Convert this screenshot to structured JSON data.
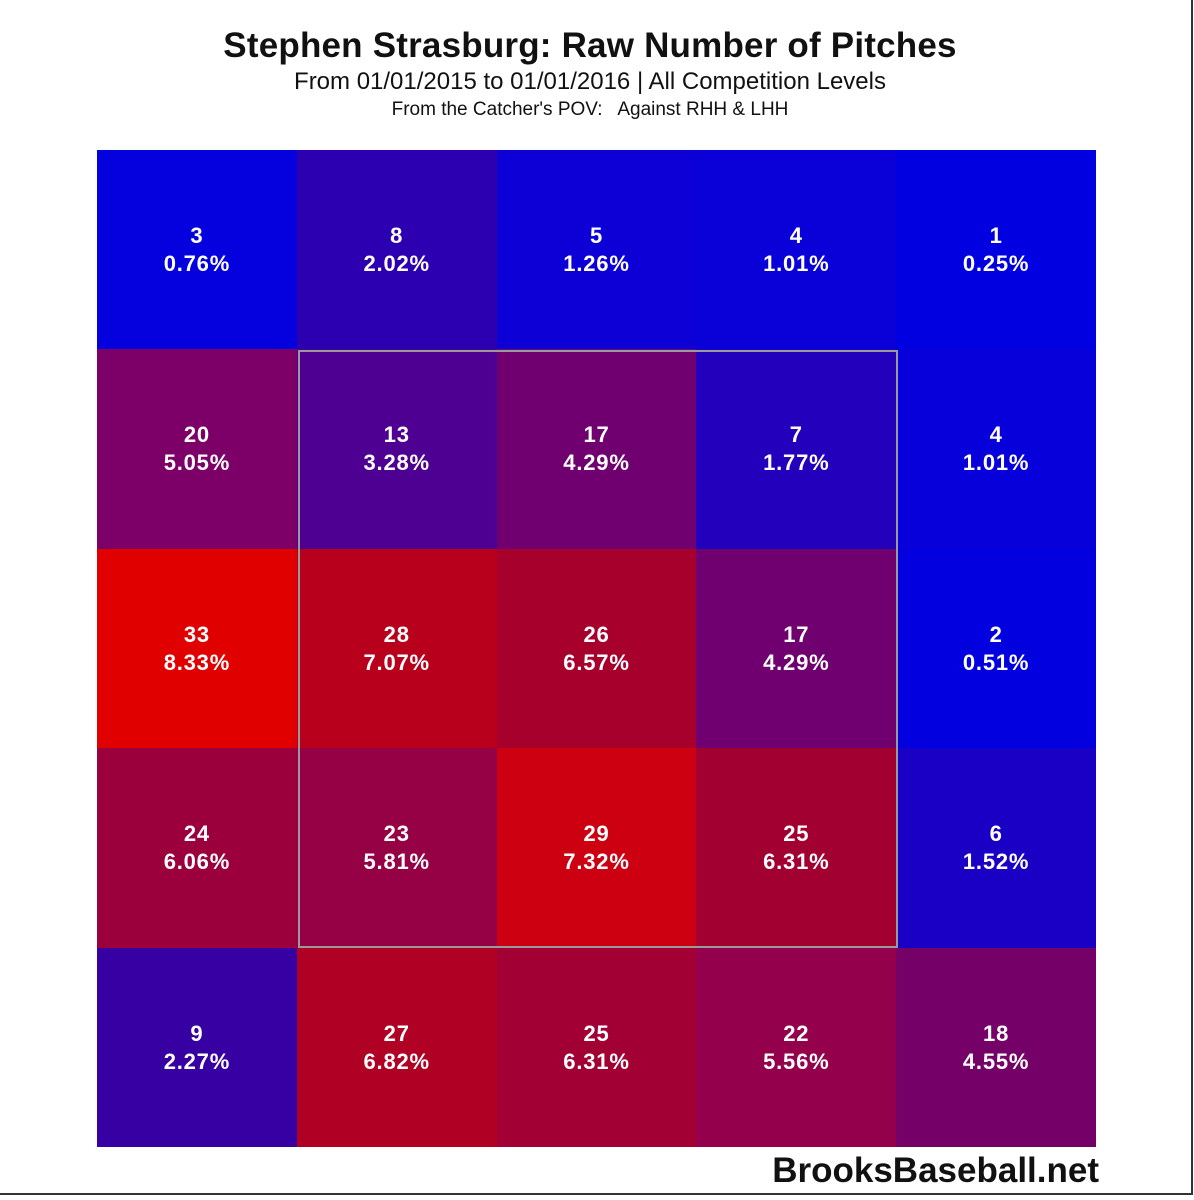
{
  "title": "Stephen Strasburg: Raw Number of Pitches",
  "subtitle": "From 01/01/2015 to 01/01/2016 | All Competition Levels",
  "subtitle2": "From the Catcher's POV:   Against RHH & LHH",
  "credit": "BrooksBaseball.net",
  "colors": {
    "low": "#0000e0",
    "high": "#e00000",
    "strike_zone_border": "#9a9a9a"
  },
  "cells": [
    {
      "count": "3",
      "pct": "0.76%",
      "color": "#0500de"
    },
    {
      "count": "8",
      "pct": "2.02%",
      "color": "#2c00b0"
    },
    {
      "count": "5",
      "pct": "1.26%",
      "color": "#0c00d6"
    },
    {
      "count": "4",
      "pct": "1.01%",
      "color": "#0a00d8"
    },
    {
      "count": "1",
      "pct": "0.25%",
      "color": "#0000e0"
    },
    {
      "count": "20",
      "pct": "5.05%",
      "color": "#7c0068"
    },
    {
      "count": "13",
      "pct": "3.28%",
      "color": "#4e0092"
    },
    {
      "count": "17",
      "pct": "4.29%",
      "color": "#700070"
    },
    {
      "count": "7",
      "pct": "1.77%",
      "color": "#2200bc"
    },
    {
      "count": "4",
      "pct": "1.01%",
      "color": "#0800da"
    },
    {
      "count": "33",
      "pct": "8.33%",
      "color": "#e00000"
    },
    {
      "count": "28",
      "pct": "7.07%",
      "color": "#b8001c"
    },
    {
      "count": "26",
      "pct": "6.57%",
      "color": "#a8002c"
    },
    {
      "count": "17",
      "pct": "4.29%",
      "color": "#700070"
    },
    {
      "count": "2",
      "pct": "0.51%",
      "color": "#0200de"
    },
    {
      "count": "24",
      "pct": "6.06%",
      "color": "#9c003c"
    },
    {
      "count": "23",
      "pct": "5.81%",
      "color": "#960044"
    },
    {
      "count": "29",
      "pct": "7.32%",
      "color": "#cc0010"
    },
    {
      "count": "25",
      "pct": "6.31%",
      "color": "#a20030"
    },
    {
      "count": "6",
      "pct": "1.52%",
      "color": "#1a00c4"
    },
    {
      "count": "9",
      "pct": "2.27%",
      "color": "#3600a2"
    },
    {
      "count": "27",
      "pct": "6.82%",
      "color": "#b00024"
    },
    {
      "count": "25",
      "pct": "6.31%",
      "color": "#a20034"
    },
    {
      "count": "22",
      "pct": "5.56%",
      "color": "#94004c"
    },
    {
      "count": "18",
      "pct": "4.55%",
      "color": "#740068"
    }
  ],
  "chart_data": {
    "type": "heatmap",
    "title": "Stephen Strasburg: Raw Number of Pitches",
    "subtitle": "From 01/01/2015 to 01/01/2016 | All Competition Levels",
    "annotation": "From the Catcher's POV: Against RHH & LHH",
    "xlabel": "",
    "ylabel": "",
    "rows": 5,
    "cols": 5,
    "strike_zone": {
      "rows": [
        1,
        3
      ],
      "cols": [
        1,
        3
      ]
    },
    "values": [
      [
        3,
        8,
        5,
        4,
        1
      ],
      [
        20,
        13,
        17,
        7,
        4
      ],
      [
        33,
        28,
        26,
        17,
        2
      ],
      [
        24,
        23,
        29,
        25,
        6
      ],
      [
        9,
        27,
        25,
        22,
        18
      ]
    ],
    "percentages": [
      [
        0.76,
        2.02,
        1.26,
        1.01,
        0.25
      ],
      [
        5.05,
        3.28,
        4.29,
        1.77,
        1.01
      ],
      [
        8.33,
        7.07,
        6.57,
        4.29,
        0.51
      ],
      [
        6.06,
        5.81,
        7.32,
        6.31,
        1.52
      ],
      [
        2.27,
        6.82,
        6.31,
        5.56,
        4.55
      ]
    ],
    "colorscale": [
      "#0000e0",
      "#e00000"
    ],
    "source": "BrooksBaseball.net"
  }
}
